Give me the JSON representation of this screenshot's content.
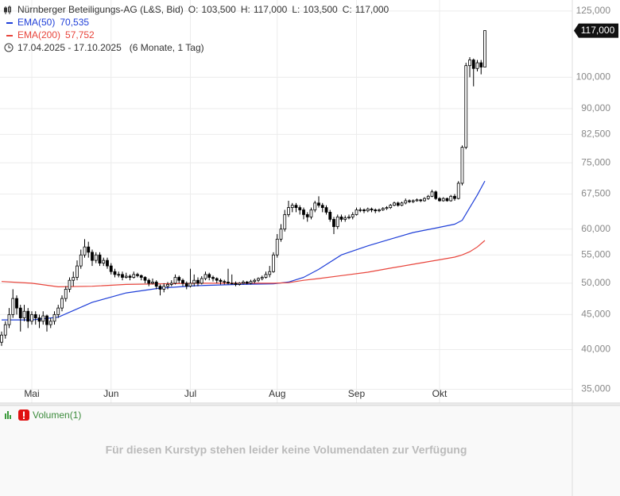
{
  "chart_data": {
    "type": "candlestick",
    "title": "Nürnberger Beteiligungs-AG (L&S, Bid)",
    "quote": [
      {
        "label": "O:",
        "value": "103,500"
      },
      {
        "label": "H:",
        "value": "117,000"
      },
      {
        "label": "L:",
        "value": "103,500"
      },
      {
        "label": "C:",
        "value": "117,000"
      }
    ],
    "date_range": "17.04.2025 - 17.10.2025",
    "period": "(6 Monate, 1 Tag)",
    "log_scale": true,
    "grid": true,
    "ylim": [
      33.4,
      129.7
    ],
    "yticks": [
      {
        "value": 35,
        "label": "35,000"
      },
      {
        "value": 40,
        "label": "40,000"
      },
      {
        "value": 45,
        "label": "45,000"
      },
      {
        "value": 50,
        "label": "50,000"
      },
      {
        "value": 55,
        "label": "55,000"
      },
      {
        "value": 60,
        "label": "60,000"
      },
      {
        "value": 67.5,
        "label": "67,500"
      },
      {
        "value": 75,
        "label": "75,000"
      },
      {
        "value": 82.5,
        "label": "82,500"
      },
      {
        "value": 90,
        "label": "90,000"
      },
      {
        "value": 100,
        "label": "100,000"
      },
      {
        "value": 125,
        "label": "125,000"
      }
    ],
    "xlim": [
      -0.42,
      151.16
    ],
    "xticks": [
      {
        "value": 8,
        "label": "Mai"
      },
      {
        "value": 29,
        "label": "Jun"
      },
      {
        "value": 50,
        "label": "Jul"
      },
      {
        "value": 73,
        "label": "Aug"
      },
      {
        "value": 94,
        "label": "Sep"
      },
      {
        "value": 116,
        "label": "Okt"
      }
    ],
    "last_price_label": "117,000",
    "candles": {
      "up_color": "#ffffff",
      "down_color": "#000000",
      "values": [
        [
          41.0,
          42.5,
          40.5,
          42.0
        ],
        [
          42.0,
          44.0,
          41.5,
          43.5
        ],
        [
          43.5,
          46.0,
          43.0,
          45.0
        ],
        [
          45.0,
          49.0,
          44.5,
          47.5
        ],
        [
          47.5,
          48.0,
          45.0,
          46.0
        ],
        [
          46.0,
          46.5,
          42.5,
          44.5
        ],
        [
          44.5,
          46.5,
          44.0,
          45.5
        ],
        [
          45.5,
          46.0,
          43.0,
          44.0
        ],
        [
          44.0,
          45.5,
          43.5,
          45.0
        ],
        [
          45.0,
          45.5,
          43.5,
          44.5
        ],
        [
          44.5,
          45.0,
          43.0,
          44.0
        ],
        [
          44.0,
          45.5,
          43.5,
          44.8
        ],
        [
          44.8,
          45.0,
          42.5,
          43.5
        ],
        [
          43.5,
          44.5,
          43.0,
          44.0
        ],
        [
          44.0,
          45.5,
          43.5,
          45.0
        ],
        [
          45.0,
          46.5,
          44.5,
          46.0
        ],
        [
          46.0,
          48.0,
          45.5,
          47.5
        ],
        [
          47.5,
          49.5,
          47.0,
          49.0
        ],
        [
          49.0,
          51.0,
          48.5,
          50.5
        ],
        [
          50.5,
          52.0,
          49.5,
          51.0
        ],
        [
          51.0,
          54.0,
          50.5,
          53.0
        ],
        [
          53.0,
          56.0,
          52.5,
          55.0
        ],
        [
          55.0,
          58.0,
          54.5,
          56.5
        ],
        [
          56.5,
          57.5,
          54.5,
          55.5
        ],
        [
          55.5,
          56.0,
          53.0,
          54.0
        ],
        [
          54.0,
          55.5,
          53.5,
          55.0
        ],
        [
          55.0,
          55.5,
          53.0,
          53.5
        ],
        [
          53.5,
          54.5,
          53.0,
          54.0
        ],
        [
          54.0,
          54.5,
          52.5,
          53.0
        ],
        [
          53.0,
          53.5,
          51.5,
          52.0
        ],
        [
          52.0,
          52.5,
          51.0,
          51.5
        ],
        [
          51.5,
          52.0,
          51.0,
          51.5
        ],
        [
          51.5,
          52.0,
          50.5,
          51.0
        ],
        [
          51.0,
          51.8,
          50.8,
          51.2
        ],
        [
          51.2,
          51.5,
          50.5,
          51.0
        ],
        [
          51.0,
          52.0,
          50.8,
          51.5
        ],
        [
          51.5,
          51.8,
          51.0,
          51.3
        ],
        [
          51.3,
          51.5,
          50.5,
          51.0
        ],
        [
          51.0,
          51.2,
          50.0,
          50.5
        ],
        [
          50.5,
          50.8,
          49.5,
          50.0
        ],
        [
          50.0,
          50.8,
          49.8,
          50.2
        ],
        [
          50.2,
          50.5,
          49.0,
          49.5
        ],
        [
          49.5,
          49.8,
          48.0,
          49.0
        ],
        [
          49.0,
          50.0,
          48.5,
          49.5
        ],
        [
          49.5,
          50.2,
          49.0,
          49.8
        ],
        [
          49.8,
          50.5,
          49.5,
          50.0
        ],
        [
          50.0,
          51.5,
          49.8,
          51.0
        ],
        [
          51.0,
          51.3,
          50.0,
          50.5
        ],
        [
          50.5,
          50.8,
          49.5,
          50.0
        ],
        [
          50.0,
          50.3,
          49.0,
          49.5
        ],
        [
          49.5,
          52.5,
          49.3,
          50.0
        ],
        [
          50.0,
          51.5,
          49.5,
          50.5
        ],
        [
          50.5,
          51.0,
          49.5,
          50.0
        ],
        [
          50.0,
          51.2,
          49.8,
          50.8
        ],
        [
          50.8,
          52.0,
          50.5,
          51.5
        ],
        [
          51.5,
          51.8,
          50.5,
          51.0
        ],
        [
          51.0,
          51.3,
          50.3,
          50.8
        ],
        [
          50.8,
          51.0,
          50.0,
          50.5
        ],
        [
          50.5,
          50.8,
          49.8,
          50.3
        ],
        [
          50.3,
          50.6,
          49.8,
          50.2
        ],
        [
          50.2,
          52.5,
          49.8,
          50.0
        ],
        [
          50.0,
          51.5,
          49.8,
          50.0
        ],
        [
          50.0,
          50.3,
          49.5,
          49.8
        ],
        [
          49.8,
          50.2,
          49.6,
          50.0
        ],
        [
          50.0,
          50.5,
          49.8,
          50.2
        ],
        [
          50.2,
          50.4,
          49.8,
          50.0
        ],
        [
          50.0,
          50.6,
          49.8,
          50.3
        ],
        [
          50.3,
          50.8,
          50.0,
          50.5
        ],
        [
          50.5,
          51.0,
          50.2,
          50.8
        ],
        [
          50.8,
          51.3,
          50.5,
          51.0
        ],
        [
          51.0,
          52.0,
          50.8,
          51.5
        ],
        [
          51.5,
          53.0,
          51.0,
          52.0
        ],
        [
          52.0,
          55.5,
          51.8,
          55.0
        ],
        [
          55.0,
          59.0,
          54.5,
          58.0
        ],
        [
          58.0,
          61.0,
          57.5,
          60.0
        ],
        [
          60.0,
          64.0,
          59.5,
          63.0
        ],
        [
          63.0,
          66.0,
          62.5,
          64.5
        ],
        [
          64.5,
          65.5,
          63.5,
          65.0
        ],
        [
          65.0,
          65.5,
          63.5,
          64.5
        ],
        [
          64.5,
          65.0,
          63.0,
          64.0
        ],
        [
          64.0,
          64.5,
          62.0,
          63.0
        ],
        [
          63.0,
          63.5,
          61.5,
          62.5
        ],
        [
          62.5,
          64.5,
          62.0,
          64.0
        ],
        [
          64.0,
          66.0,
          63.5,
          65.5
        ],
        [
          65.5,
          67.0,
          64.5,
          65.0
        ],
        [
          65.0,
          65.5,
          63.5,
          64.5
        ],
        [
          64.5,
          65.0,
          63.0,
          63.5
        ],
        [
          63.5,
          64.0,
          61.5,
          62.0
        ],
        [
          62.0,
          62.5,
          59.0,
          60.5
        ],
        [
          60.5,
          63.0,
          60.0,
          62.5
        ],
        [
          62.5,
          63.0,
          61.5,
          62.0
        ],
        [
          62.0,
          62.8,
          61.5,
          62.3
        ],
        [
          62.3,
          63.0,
          62.0,
          62.5
        ],
        [
          62.5,
          63.5,
          62.0,
          63.0
        ],
        [
          63.0,
          64.5,
          62.8,
          64.0
        ],
        [
          64.0,
          64.5,
          63.5,
          64.0
        ],
        [
          64.0,
          64.3,
          63.3,
          63.8
        ],
        [
          63.8,
          64.5,
          63.5,
          64.2
        ],
        [
          64.2,
          64.5,
          63.5,
          64.0
        ],
        [
          64.0,
          64.3,
          63.3,
          63.8
        ],
        [
          63.8,
          64.3,
          63.5,
          64.0
        ],
        [
          64.0,
          64.6,
          63.8,
          64.3
        ],
        [
          64.3,
          64.8,
          64.0,
          64.5
        ],
        [
          64.5,
          65.3,
          64.2,
          65.0
        ],
        [
          65.0,
          65.8,
          64.8,
          65.5
        ],
        [
          65.5,
          65.8,
          64.7,
          65.0
        ],
        [
          65.0,
          65.8,
          64.8,
          65.5
        ],
        [
          65.5,
          66.5,
          65.2,
          66.0
        ],
        [
          66.0,
          66.3,
          65.5,
          65.8
        ],
        [
          65.8,
          66.3,
          65.5,
          66.0
        ],
        [
          66.0,
          66.5,
          65.8,
          66.2
        ],
        [
          66.2,
          66.4,
          65.7,
          66.0
        ],
        [
          66.0,
          66.8,
          65.8,
          66.5
        ],
        [
          66.5,
          67.3,
          66.2,
          67.0
        ],
        [
          67.0,
          68.5,
          66.8,
          68.0
        ],
        [
          68.0,
          68.3,
          66.2,
          66.5
        ],
        [
          66.5,
          66.8,
          65.8,
          66.0
        ],
        [
          66.0,
          66.8,
          65.8,
          66.5
        ],
        [
          66.5,
          66.7,
          65.8,
          66.0
        ],
        [
          66.0,
          67.3,
          65.8,
          67.0
        ],
        [
          67.0,
          67.5,
          66.0,
          66.5
        ],
        [
          66.5,
          70.5,
          66.3,
          70.0
        ],
        [
          70.0,
          79.5,
          69.5,
          79.0
        ],
        [
          79.0,
          105.0,
          78.5,
          104.0
        ],
        [
          104.0,
          107.0,
          100.0,
          106.0
        ],
        [
          106.0,
          106.5,
          97.0,
          103.0
        ],
        [
          103.0,
          106.0,
          102.0,
          105.0
        ],
        [
          105.0,
          106.0,
          101.0,
          103.5
        ],
        [
          103.5,
          117.0,
          103.5,
          117.0
        ]
      ]
    },
    "series": [
      {
        "name": "EMA(50)",
        "value_label": "70,535",
        "color": "#1f3fd8",
        "x": [
          0,
          8,
          15,
          24,
          33,
          42,
          52,
          63,
          72,
          76,
          80,
          84,
          90,
          97,
          103,
          109,
          115,
          120,
          122,
          124,
          126,
          128
        ],
        "values": [
          44.2,
          44.2,
          44.6,
          46.9,
          48.4,
          49.2,
          49.6,
          49.8,
          49.9,
          50.2,
          51.0,
          52.4,
          55.0,
          56.7,
          58.0,
          59.3,
          60.2,
          61.0,
          61.8,
          64.5,
          67.3,
          70.535
        ]
      },
      {
        "name": "EMA(200)",
        "value_label": "57,752",
        "color": "#e8453c",
        "x": [
          0,
          8,
          15,
          24,
          33,
          42,
          52,
          63,
          72,
          76,
          80,
          84,
          90,
          97,
          103,
          109,
          115,
          120,
          122,
          124,
          126,
          128
        ],
        "values": [
          50.3,
          50.0,
          49.4,
          49.5,
          49.8,
          49.9,
          50.0,
          50.0,
          50.0,
          50.1,
          50.5,
          50.8,
          51.3,
          51.9,
          52.6,
          53.3,
          54.0,
          54.6,
          55.0,
          55.6,
          56.5,
          57.752
        ]
      }
    ]
  },
  "volume_pane": {
    "title": "Volumen(1)",
    "message": "Für diesen Kurstyp stehen leider keine Volumendaten zur Verfügung"
  }
}
